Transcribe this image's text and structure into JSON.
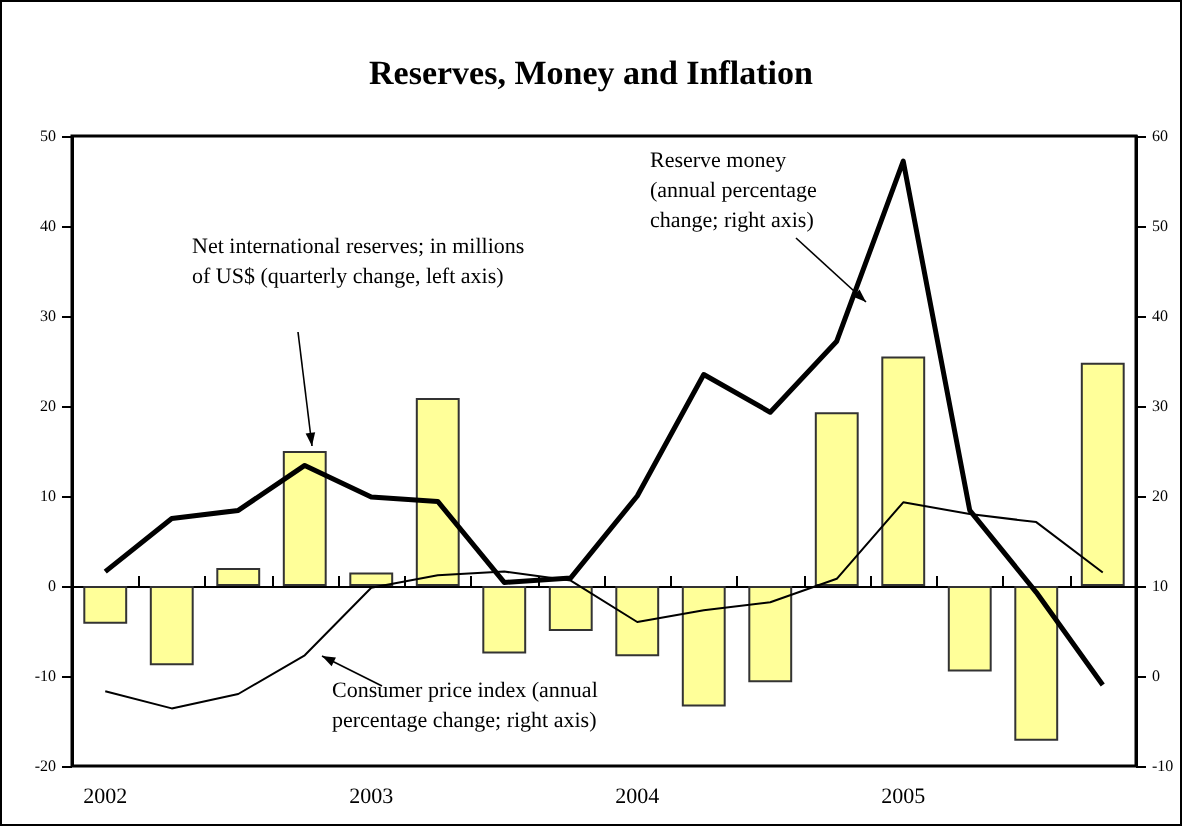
{
  "chart_data": {
    "type": "bar",
    "title": "Reserves, Money and Inflation",
    "categories": [
      "2002",
      null,
      null,
      null,
      "2003",
      null,
      null,
      null,
      "2004",
      null,
      null,
      null,
      "2005",
      null,
      null,
      null
    ],
    "series": [
      {
        "color": "#ffff99",
        "values": [
          -4.2,
          -8.8,
          2,
          15,
          1.5,
          20.9,
          -7.5,
          -5,
          -7.8,
          -13.4,
          -10.7,
          19.3,
          25.5,
          -9.5,
          -17.2,
          24.8
        ]
      },
      {
        "type": "line",
        "axis": "y2",
        "color": "#000000",
        "values": [
          11.6,
          17.5,
          18.4,
          23.4,
          19.9,
          19.4,
          10.4,
          10.9,
          20,
          33.5,
          29.3,
          37.2,
          57.2,
          18.4,
          9.3,
          -1
        ]
      },
      {
        "type": "line",
        "axis": "y2",
        "color": "#000000",
        "values": [
          -1.7,
          -3.6,
          -2,
          2.3,
          9.8,
          11.2,
          11.6,
          10.6,
          6,
          7.3,
          8.2,
          10.8,
          19.3,
          18,
          17.1,
          11.5
        ]
      }
    ],
    "ylim": [
      -20,
      50
    ],
    "yticks": [
      -20,
      -10,
      0,
      10,
      20,
      30,
      40,
      50
    ],
    "y2lim": [
      -10,
      60
    ],
    "y2ticks": [
      -10,
      0,
      10,
      20,
      30,
      40,
      50,
      60
    ],
    "marker": "none",
    "annotations": [
      "Net international reserves; in millions of US$ (quarterly change, left axis)",
      "Reserve money (annual percentage change; right axis)",
      "Consumer price index (annual percentage change; right axis)"
    ]
  }
}
